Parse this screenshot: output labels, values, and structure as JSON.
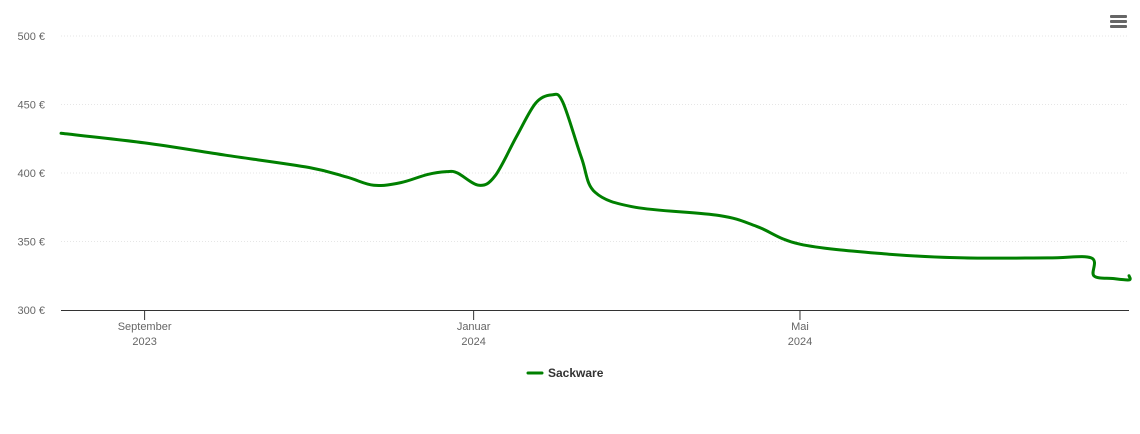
{
  "chart_data": {
    "type": "line",
    "title": "",
    "xlabel": "",
    "ylabel": "",
    "ylim": [
      300,
      500
    ],
    "yticks": [
      {
        "value": 500,
        "label": "500 €"
      },
      {
        "value": 450,
        "label": "450 €"
      },
      {
        "value": 400,
        "label": "400 €"
      },
      {
        "value": 350,
        "label": "350 €"
      },
      {
        "value": 300,
        "label": "300 €"
      }
    ],
    "xlim": [
      "2023-08-01",
      "2024-08-31"
    ],
    "xticks": [
      {
        "date": "2023-09-01",
        "line1": "September",
        "line2": "2023"
      },
      {
        "date": "2024-01-01",
        "line1": "Januar",
        "line2": "2024"
      },
      {
        "date": "2024-05-01",
        "line1": "Mai",
        "line2": "2024"
      }
    ],
    "grid": true,
    "legend_position": "bottom-center",
    "series": [
      {
        "name": "Sackware",
        "color": "#008000",
        "points": [
          {
            "x": "2023-08-01",
            "y": 429
          },
          {
            "x": "2023-09-01",
            "y": 422
          },
          {
            "x": "2023-10-01",
            "y": 413
          },
          {
            "x": "2023-11-01",
            "y": 404
          },
          {
            "x": "2023-11-15",
            "y": 397
          },
          {
            "x": "2023-11-25",
            "y": 391
          },
          {
            "x": "2023-12-05",
            "y": 393
          },
          {
            "x": "2023-12-15",
            "y": 399
          },
          {
            "x": "2023-12-22",
            "y": 401
          },
          {
            "x": "2023-12-26",
            "y": 400
          },
          {
            "x": "2024-01-03",
            "y": 391
          },
          {
            "x": "2024-01-09",
            "y": 398
          },
          {
            "x": "2024-01-17",
            "y": 427
          },
          {
            "x": "2024-01-24",
            "y": 451
          },
          {
            "x": "2024-01-30",
            "y": 457
          },
          {
            "x": "2024-02-03",
            "y": 452
          },
          {
            "x": "2024-02-10",
            "y": 411
          },
          {
            "x": "2024-02-15",
            "y": 386
          },
          {
            "x": "2024-03-01",
            "y": 375
          },
          {
            "x": "2024-04-01",
            "y": 369
          },
          {
            "x": "2024-04-15",
            "y": 361
          },
          {
            "x": "2024-05-01",
            "y": 348
          },
          {
            "x": "2024-06-01",
            "y": 341
          },
          {
            "x": "2024-07-01",
            "y": 338
          },
          {
            "x": "2024-08-01",
            "y": 338
          },
          {
            "x": "2024-08-17",
            "y": 338
          },
          {
            "x": "2024-08-18",
            "y": 325
          },
          {
            "x": "2024-08-25",
            "y": 323
          },
          {
            "x": "2024-08-31",
            "y": 322
          },
          {
            "x": "2024-08-31",
            "y": 325
          }
        ]
      }
    ]
  }
}
